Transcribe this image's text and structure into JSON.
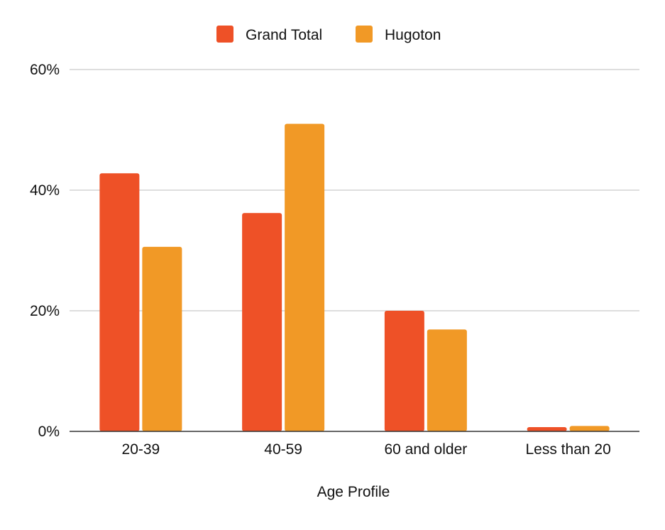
{
  "chart_data": {
    "type": "bar",
    "title": "",
    "xlabel": "Age Profile",
    "ylabel": "",
    "categories": [
      "20-39",
      "40-59",
      "60 and older",
      "Less than 20"
    ],
    "series": [
      {
        "name": "Grand Total",
        "color": "#ee5127",
        "values": [
          42.8,
          36.2,
          20.0,
          0.7
        ]
      },
      {
        "name": "Hugoton",
        "color": "#f19926",
        "values": [
          30.6,
          51.0,
          16.9,
          0.9
        ]
      }
    ],
    "ylim": [
      0,
      60
    ],
    "yticks": [
      {
        "value": 0,
        "label": "0%"
      },
      {
        "value": 20,
        "label": "20%"
      },
      {
        "value": 40,
        "label": "40%"
      },
      {
        "value": 60,
        "label": "60%"
      }
    ],
    "grid": true,
    "legend_position": "top"
  }
}
